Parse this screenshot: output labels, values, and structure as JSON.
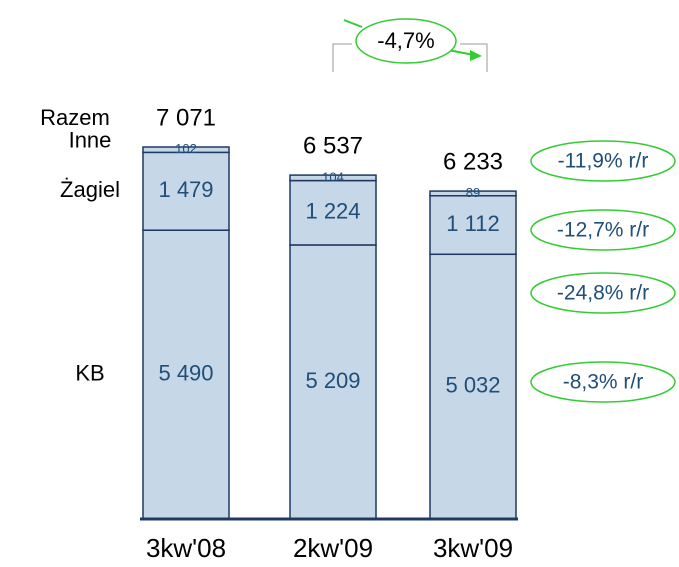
{
  "chart_data": {
    "type": "stacked-bar",
    "categories": [
      "3kw'08",
      "2kw'09",
      "3kw'09"
    ],
    "series": [
      {
        "name": "KB",
        "values": [
          5490,
          5209,
          5032
        ],
        "value_labels": [
          "5 490",
          "5 209",
          "5 032"
        ],
        "change_label": "-8,3% r/r"
      },
      {
        "name": "Żagiel",
        "values": [
          1479,
          1224,
          1112
        ],
        "value_labels": [
          "1 479",
          "1 224",
          "1 112"
        ],
        "change_label": "-24,8% r/r"
      },
      {
        "name": "Inne",
        "values": [
          102,
          104,
          89
        ],
        "value_labels": [
          "102",
          "104",
          "89"
        ],
        "change_label": "-12,7% r/r"
      }
    ],
    "totals": {
      "name": "Razem",
      "values": [
        7071,
        6537,
        6233
      ],
      "value_labels": [
        "7 071",
        "6 537",
        "6 233"
      ],
      "change_label": "-11,9% r/r"
    },
    "period_change_label": "-4,7%",
    "color": "#c6d7e8",
    "edge_color": "#1f3864",
    "text_color": "#1f4e79",
    "annotation_color": "#33cc33"
  }
}
